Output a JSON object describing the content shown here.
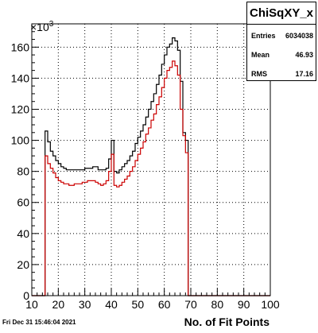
{
  "chart_data": {
    "type": "histogram",
    "title": "",
    "xlabel": "No. of Fit Points",
    "ylabel": "",
    "y_multiplier_label": "×10",
    "y_multiplier_exp": "3",
    "xlim": [
      10,
      100
    ],
    "ylim": [
      0,
      175
    ],
    "x_ticks": [
      10,
      20,
      30,
      40,
      50,
      60,
      70,
      80,
      90,
      100
    ],
    "y_ticks": [
      0,
      20,
      40,
      60,
      80,
      100,
      120,
      140,
      160
    ],
    "grid": true,
    "bin_width": 1,
    "series": [
      {
        "color": "#000000",
        "x_start": 10,
        "values": [
          0,
          0,
          0,
          0,
          0,
          106,
          99,
          93,
          90,
          87,
          85,
          83,
          82,
          81,
          81,
          81,
          81,
          81,
          81,
          81,
          82,
          82,
          82,
          83,
          83,
          81,
          81,
          81,
          82,
          88,
          100,
          80,
          79,
          81,
          83,
          85,
          87,
          90,
          93,
          98,
          102,
          106,
          110,
          115,
          120,
          125,
          130,
          136,
          142,
          149,
          155,
          160,
          162,
          166,
          164,
          158,
          138,
          105,
          100,
          0,
          0,
          0,
          0,
          0,
          0,
          0,
          0,
          0,
          0,
          0,
          0,
          0,
          0,
          0,
          0,
          0,
          0,
          0,
          0,
          0,
          0,
          0,
          0,
          0,
          0,
          0,
          0,
          0,
          0,
          0
        ]
      },
      {
        "color": "#cc0000",
        "x_start": 10,
        "values": [
          0,
          0,
          0,
          0,
          0,
          90,
          85,
          82,
          79,
          76,
          74,
          73,
          72,
          72,
          71,
          71,
          72,
          72,
          72,
          73,
          73,
          74,
          74,
          74,
          73,
          72,
          71,
          72,
          74,
          80,
          91,
          71,
          70,
          71,
          73,
          75,
          77,
          80,
          83,
          87,
          91,
          95,
          99,
          104,
          108,
          113,
          117,
          123,
          128,
          134,
          140,
          145,
          147,
          151,
          148,
          142,
          120,
          103,
          92,
          0,
          0,
          0,
          0,
          0,
          0,
          0,
          0,
          0,
          0,
          0,
          0,
          0,
          0,
          0,
          0,
          0,
          0,
          0,
          0,
          0,
          0,
          0,
          0,
          0,
          0,
          0,
          0,
          0,
          0,
          0
        ]
      }
    ]
  },
  "stats": {
    "title": "ChiSqXY_x",
    "rows": [
      {
        "label": "Entries",
        "value": "6034038"
      },
      {
        "label": "Mean",
        "value": "46.93"
      },
      {
        "label": "RMS",
        "value": "17.16"
      }
    ]
  },
  "footer": {
    "date": "Fri Dec 31 15:46:04 2021"
  }
}
